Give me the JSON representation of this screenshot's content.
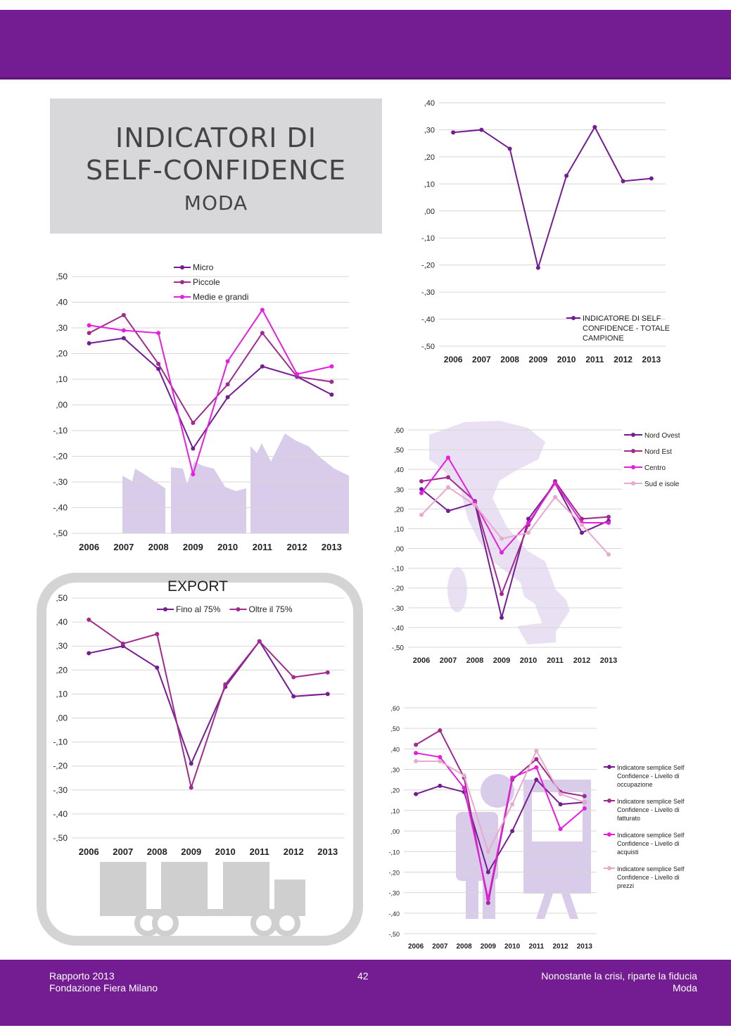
{
  "header": {
    "title_line1": "INDICATORI DI",
    "title_line2": "SELF-CONFIDENCE",
    "title_line3": "MODA"
  },
  "footer": {
    "left_line1": "Rapporto 2013",
    "left_line2": "Fondazione Fiera Milano",
    "page_number": "42",
    "right_line1": "Nonostante la crisi, riparte la fiducia",
    "right_line2": "Moda"
  },
  "colors": {
    "band": "#741d93",
    "title_box": "#d8d8da",
    "silhouette": "#d9cceb",
    "truck": "#cfcfcf"
  },
  "chart_data": [
    {
      "id": "totale",
      "type": "line",
      "title": "",
      "categories": [
        "2006",
        "2007",
        "2008",
        "2009",
        "2010",
        "2011",
        "2012",
        "2013"
      ],
      "ylim": [
        -0.5,
        0.4
      ],
      "yticks": [
        ",40",
        ",30",
        ",20",
        ",10",
        ",00",
        "-,10",
        "-,20",
        "-,30",
        "-,40",
        "-,50"
      ],
      "legend_position": "bottom-right",
      "series": [
        {
          "name": "INDICATORE DI SELF CONFIDENCE - TOTALE CAMPIONE",
          "color": "#741d93",
          "values": [
            0.29,
            0.3,
            0.23,
            -0.21,
            0.13,
            0.31,
            0.11,
            0.12
          ]
        }
      ]
    },
    {
      "id": "dimensione",
      "type": "line",
      "title": "",
      "categories": [
        "2006",
        "2007",
        "2008",
        "2009",
        "2010",
        "2011",
        "2012",
        "2013"
      ],
      "ylim": [
        -0.5,
        0.5
      ],
      "yticks": [
        ",50",
        ",40",
        ",30",
        ",20",
        ",10",
        ",00",
        "-,10",
        "-,20",
        "-,30",
        "-,40",
        "-,50"
      ],
      "legend_position": "top-center",
      "series": [
        {
          "name": "Micro",
          "color": "#741d93",
          "values": [
            0.24,
            0.26,
            0.14,
            -0.17,
            0.03,
            0.15,
            0.11,
            0.04
          ]
        },
        {
          "name": "Piccole",
          "color": "#a12a8f",
          "values": [
            0.28,
            0.35,
            0.16,
            -0.07,
            0.08,
            0.28,
            0.11,
            0.09
          ]
        },
        {
          "name": "Medie e grandi",
          "color": "#e61ee0",
          "values": [
            0.31,
            0.29,
            0.28,
            -0.27,
            0.17,
            0.37,
            0.12,
            0.15
          ]
        }
      ]
    },
    {
      "id": "export",
      "type": "line",
      "title": "EXPORT",
      "categories": [
        "2006",
        "2007",
        "2008",
        "2009",
        "2010",
        "2011",
        "2012",
        "2013"
      ],
      "ylim": [
        -0.5,
        0.5
      ],
      "yticks": [
        ",50",
        ",40",
        ",30",
        ",20",
        ",10",
        ",00",
        "-,10",
        "-,20",
        "-,30",
        "-,40",
        "-,50"
      ],
      "legend_position": "top-center",
      "series": [
        {
          "name": "Fino al 75%",
          "color": "#741d93",
          "values": [
            0.27,
            0.3,
            0.21,
            -0.19,
            0.13,
            0.32,
            0.09,
            0.1
          ]
        },
        {
          "name": "Oltre il 75%",
          "color": "#a12a8f",
          "values": [
            0.41,
            0.31,
            0.35,
            -0.29,
            0.14,
            0.32,
            0.17,
            0.19
          ]
        }
      ]
    },
    {
      "id": "aree",
      "type": "line",
      "title": "",
      "categories": [
        "2006",
        "2007",
        "2008",
        "2009",
        "2010",
        "2011",
        "2012",
        "2013"
      ],
      "ylim": [
        -0.5,
        0.6
      ],
      "yticks": [
        ",60",
        ",50",
        ",40",
        ",30",
        ",20",
        ",10",
        ",00",
        "-,10",
        "-,20",
        "-,30",
        "-,40",
        "-,50"
      ],
      "legend_position": "right",
      "series": [
        {
          "name": "Nord Ovest",
          "color": "#741d93",
          "values": [
            0.3,
            0.19,
            0.23,
            -0.35,
            0.15,
            0.33,
            0.08,
            0.14
          ]
        },
        {
          "name": "Nord Est",
          "color": "#a12a8f",
          "values": [
            0.34,
            0.36,
            0.24,
            -0.23,
            0.12,
            0.34,
            0.15,
            0.16
          ]
        },
        {
          "name": "Centro",
          "color": "#e61ee0",
          "values": [
            0.28,
            0.46,
            0.23,
            -0.02,
            0.13,
            0.33,
            0.13,
            0.13
          ]
        },
        {
          "name": "Sud e isole",
          "color": "#e8a9cf",
          "values": [
            0.17,
            0.31,
            0.22,
            0.05,
            0.08,
            0.26,
            0.12,
            -0.03
          ]
        }
      ]
    },
    {
      "id": "semplici",
      "type": "line",
      "title": "",
      "categories": [
        "2006",
        "2007",
        "2008",
        "2009",
        "2010",
        "2011",
        "2012",
        "2013"
      ],
      "ylim": [
        -0.5,
        0.6
      ],
      "yticks": [
        ",60",
        ",50",
        ",40",
        ",30",
        ",20",
        ",10",
        ",00",
        "-,10",
        "-,20",
        "-,30",
        "-,40",
        "-,50"
      ],
      "legend_position": "right",
      "series": [
        {
          "name": "Indicatore semplice Self Confidence - Livello di occupazione",
          "color": "#741d93",
          "values": [
            0.18,
            0.22,
            0.19,
            -0.2,
            0.0,
            0.25,
            0.13,
            0.14
          ]
        },
        {
          "name": "Indicatore semplice Self Confidence - Livello di fatturato",
          "color": "#a12a8f",
          "values": [
            0.42,
            0.49,
            0.26,
            -0.35,
            0.25,
            0.35,
            0.19,
            0.17
          ]
        },
        {
          "name": "Indicatore semplice Self Confidence - Livello di acquisti",
          "color": "#e61ee0",
          "values": [
            0.38,
            0.36,
            0.21,
            -0.33,
            0.26,
            0.31,
            0.01,
            0.11
          ]
        },
        {
          "name": "Indicatore semplice Self Confidence - Livello di prezzi",
          "color": "#e8a9cf",
          "values": [
            0.34,
            0.34,
            0.27,
            -0.1,
            0.13,
            0.39,
            0.18,
            0.14
          ]
        }
      ]
    }
  ]
}
